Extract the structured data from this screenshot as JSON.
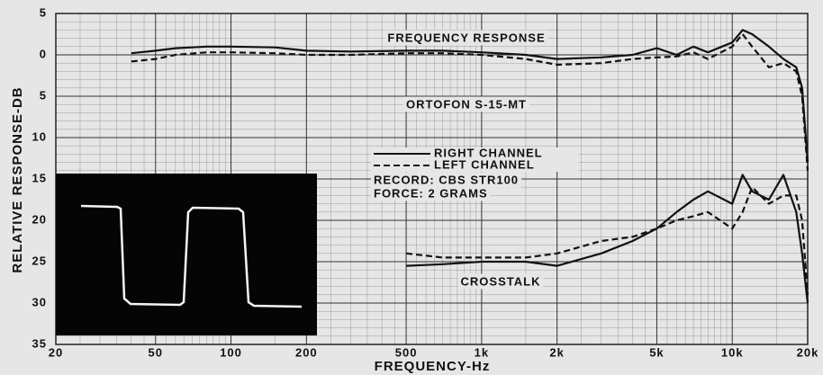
{
  "chart_data": {
    "type": "line",
    "y_axis_label": "RELATIVE RESPONSE-DB",
    "x_axis_label": "FREQUENCY-Hz",
    "log_x": true,
    "grid": true,
    "xlim": [
      20,
      20000
    ],
    "ylim": [
      -35,
      5
    ],
    "xticks": [
      20,
      50,
      100,
      200,
      500,
      {
        "value": 1000,
        "label": "1k"
      },
      {
        "value": 2000,
        "label": "2k"
      },
      {
        "value": 5000,
        "label": "5k"
      },
      {
        "value": 10000,
        "label": "10k"
      },
      {
        "value": 20000,
        "label": "20k"
      }
    ],
    "yticks": [
      5,
      0,
      {
        "value": -5,
        "label": "5"
      },
      {
        "value": -10,
        "label": "10"
      },
      {
        "value": -15,
        "label": "15"
      },
      {
        "value": -20,
        "label": "20"
      },
      {
        "value": -25,
        "label": "25"
      },
      {
        "value": -30,
        "label": "30"
      },
      {
        "value": -35,
        "label": "35"
      }
    ],
    "annotations": [
      "FREQUENCY RESPONSE",
      "ORTOFON S-15-MT",
      "RECORD: CBS STR100",
      "FORCE: 2 GRAMS",
      "CROSSTALK"
    ],
    "x": [
      40,
      50,
      60,
      80,
      100,
      150,
      200,
      300,
      500,
      700,
      1000,
      1500,
      2000,
      3000,
      4000,
      5000,
      6000,
      7000,
      8000,
      10000,
      11000,
      12000,
      14000,
      16000,
      18000,
      19000,
      20000
    ],
    "series": [
      {
        "name": "RIGHT CHANNEL",
        "color": "#111111",
        "dashed": false,
        "values": [
          0.2,
          0.5,
          0.8,
          1.0,
          1.0,
          0.9,
          0.5,
          0.4,
          0.5,
          0.5,
          0.3,
          0,
          -0.5,
          -0.3,
          0,
          0.8,
          0,
          1.0,
          0.3,
          1.5,
          3.0,
          2.5,
          1.0,
          -0.5,
          -1.5,
          -4,
          -13
        ],
        "crosstalk": [
          null,
          null,
          null,
          null,
          null,
          null,
          null,
          null,
          -25.5,
          -25.3,
          -25,
          -25,
          -25.5,
          -24,
          -22.5,
          -21,
          -19,
          -17.5,
          -16.5,
          -18,
          -14.5,
          -16.5,
          -17.5,
          -14.5,
          -19,
          -24,
          -30
        ]
      },
      {
        "name": "LEFT CHANNEL",
        "color": "#111111",
        "dashed": true,
        "values": [
          -0.8,
          -0.5,
          0,
          0.3,
          0.3,
          0.2,
          0,
          0,
          0.2,
          0.2,
          0,
          -0.5,
          -1.2,
          -1,
          -0.5,
          -0.3,
          -0.2,
          0.3,
          -0.5,
          1.0,
          2.5,
          1.0,
          -1.5,
          -1,
          -2,
          -5,
          -14
        ],
        "crosstalk": [
          null,
          null,
          null,
          null,
          null,
          null,
          null,
          null,
          -24,
          -24.5,
          -24.5,
          -24.5,
          -24,
          -22.5,
          -22,
          -21,
          -20,
          -19.5,
          -19,
          -21,
          -19,
          -16,
          -18,
          -17,
          -17,
          -20,
          -29
        ]
      }
    ]
  }
}
